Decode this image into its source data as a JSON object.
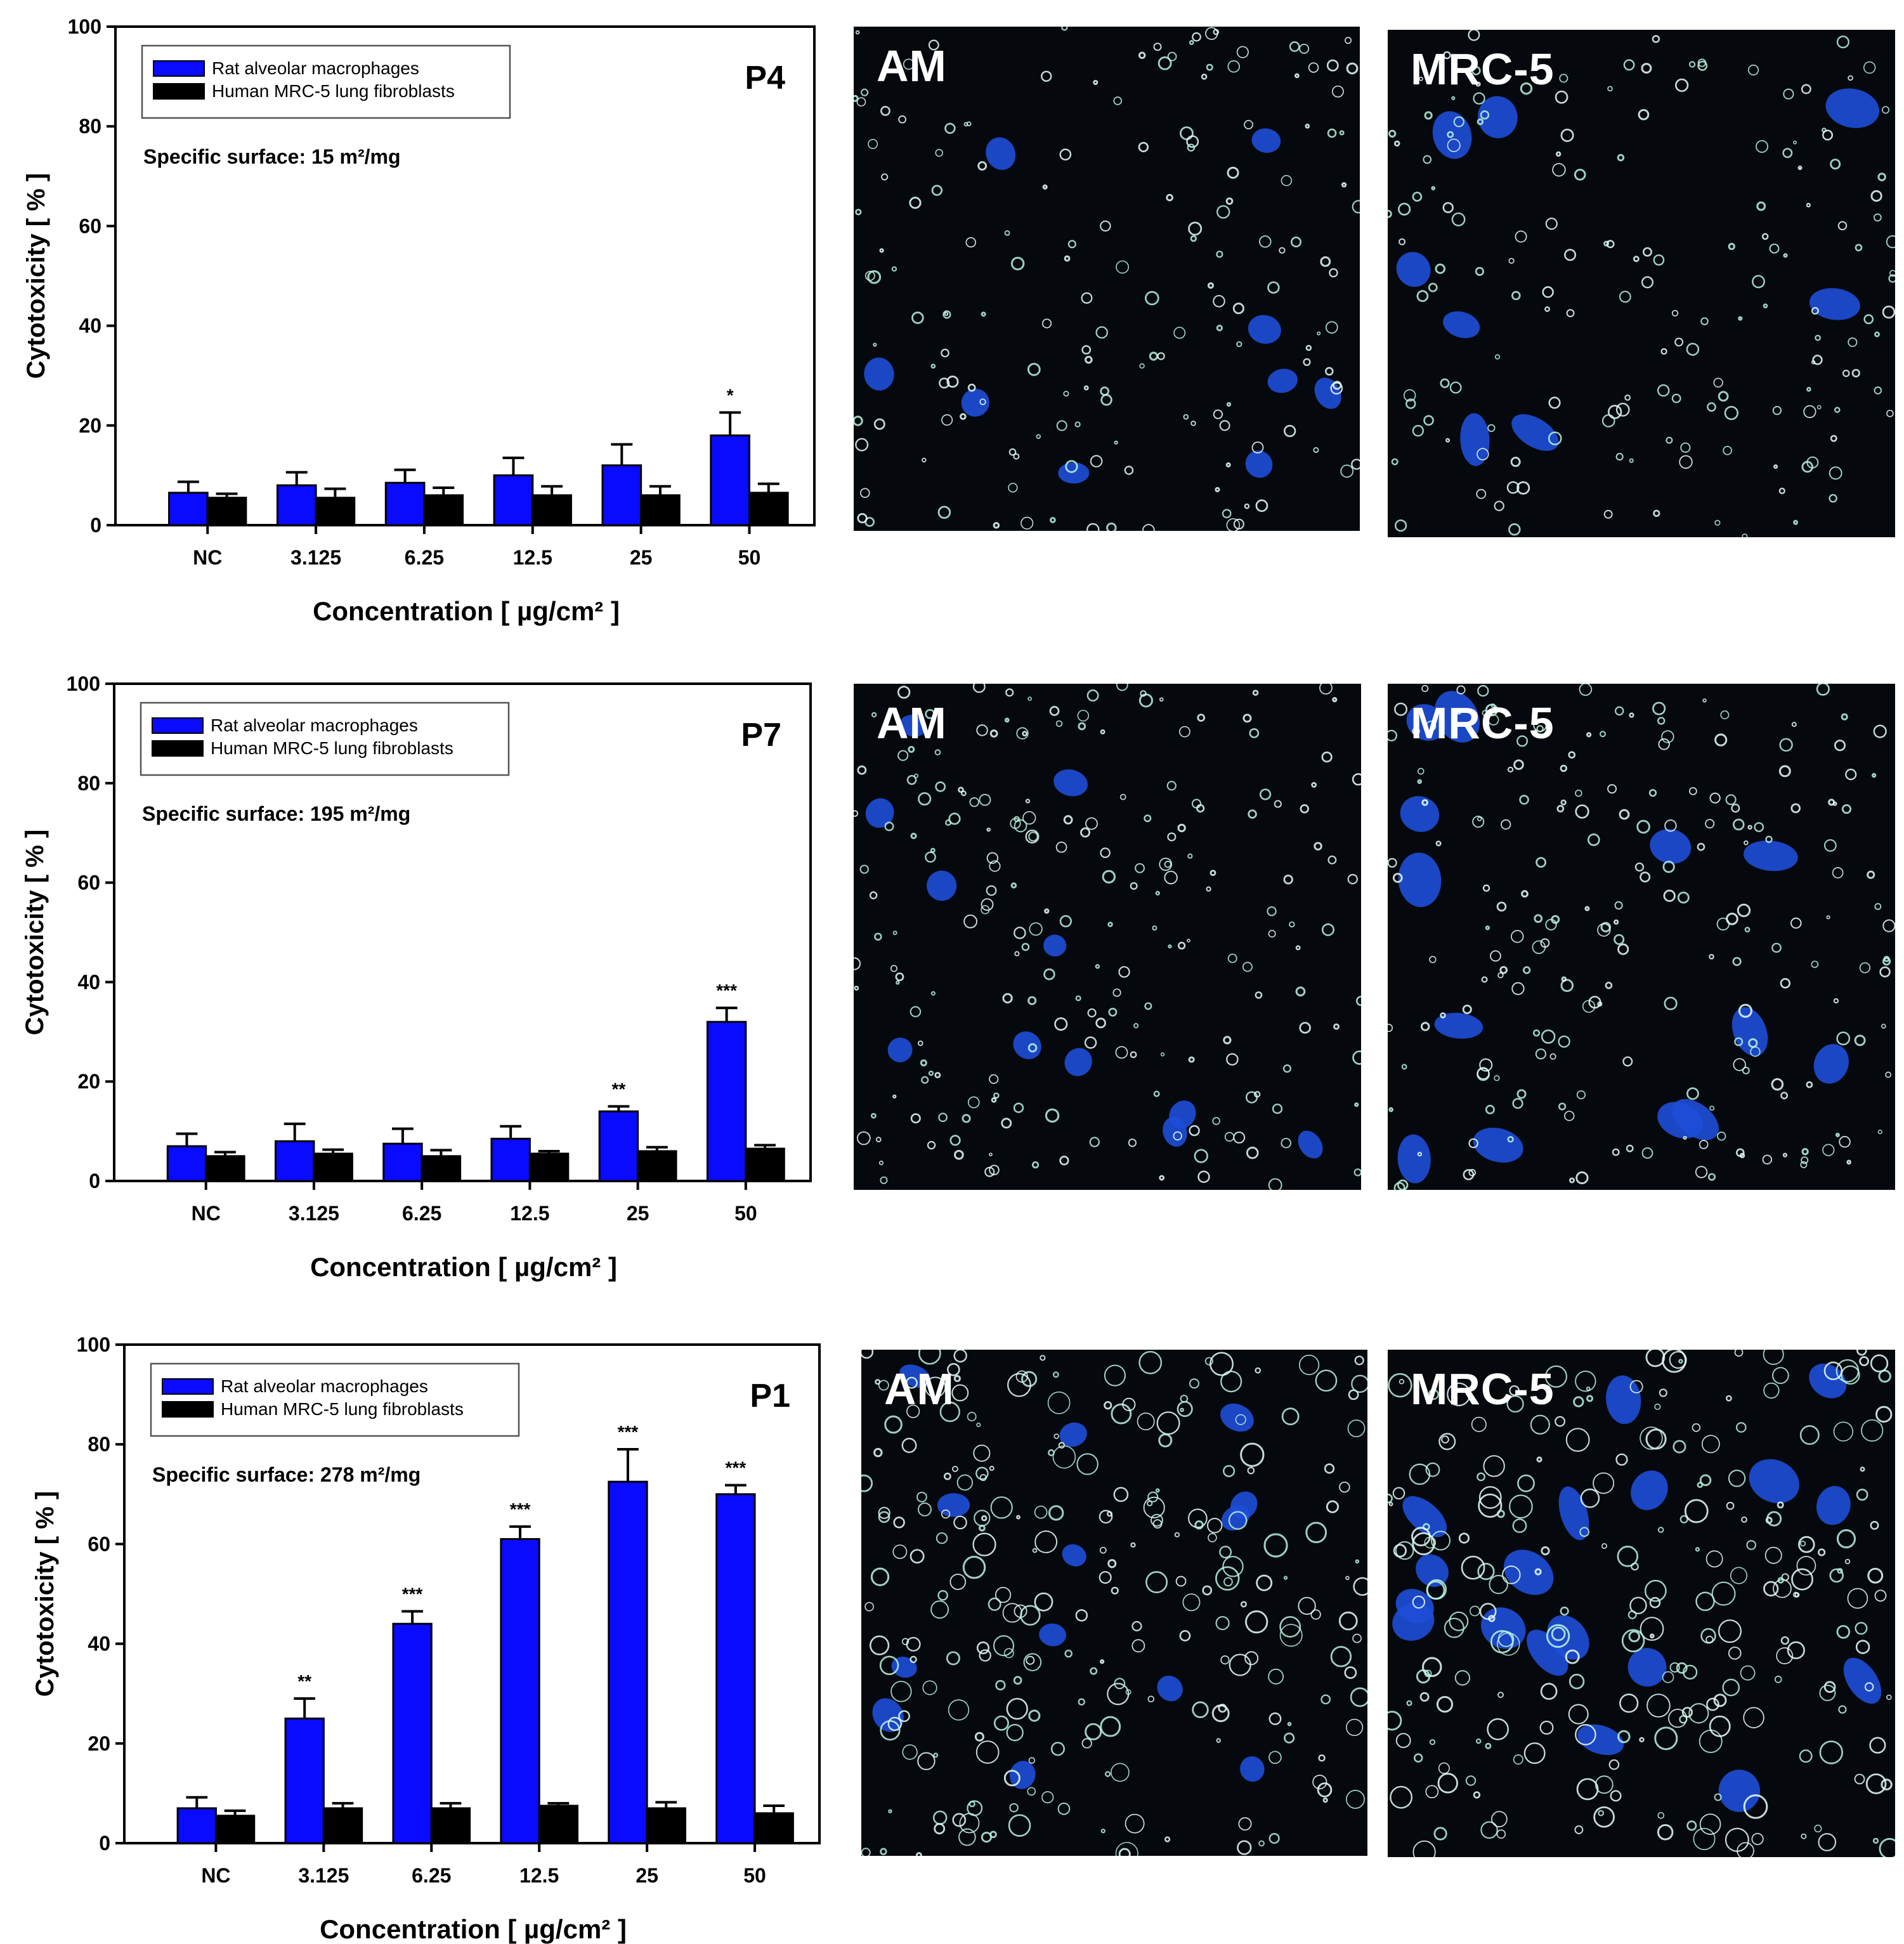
{
  "colors": {
    "blue": "#0a0aff",
    "black": "#000000"
  },
  "legend": [
    "Rat alveolar macrophages",
    "Human MRC-5 lung fibroblasts"
  ],
  "chart_data": [
    {
      "type": "bar",
      "panel_label": "P4",
      "annotation": "Specific surface: 15 m²/mg",
      "xlabel": "Concentration [ µg/cm² ]",
      "ylabel": "Cytotoxicity [ % ]",
      "ylim": [
        0,
        100
      ],
      "yticks": [
        0,
        20,
        40,
        60,
        80,
        100
      ],
      "categories": [
        "NC",
        "3.125",
        "6.25",
        "12.5",
        "25",
        "50"
      ],
      "series": [
        {
          "name": "Rat alveolar macrophages",
          "color": "#0a0aff",
          "values": [
            6.5,
            8,
            8.5,
            10,
            12,
            18
          ],
          "errors": [
            2.2,
            2.6,
            2.6,
            3.5,
            4.2,
            4.6
          ],
          "significance": [
            "",
            "",
            "",
            "",
            "",
            "*"
          ]
        },
        {
          "name": "Human MRC-5 lung fibroblasts",
          "color": "#000000",
          "values": [
            5.5,
            5.5,
            6,
            6,
            6,
            6.5
          ],
          "errors": [
            0.8,
            1.8,
            1.5,
            1.8,
            1.8,
            1.8
          ],
          "significance": [
            "",
            "",
            "",
            "",
            "",
            ""
          ]
        }
      ],
      "images": [
        "AM",
        "MRC-5"
      ]
    },
    {
      "type": "bar",
      "panel_label": "P7",
      "annotation": "Specific surface: 195 m²/mg",
      "xlabel": "Concentration [ µg/cm² ]",
      "ylabel": "Cytotoxicity [ % ]",
      "ylim": [
        0,
        100
      ],
      "yticks": [
        0,
        20,
        40,
        60,
        80,
        100
      ],
      "categories": [
        "NC",
        "3.125",
        "6.25",
        "12.5",
        "25",
        "50"
      ],
      "series": [
        {
          "name": "Rat alveolar macrophages",
          "color": "#0a0aff",
          "values": [
            7,
            8,
            7.5,
            8.5,
            14,
            32
          ],
          "errors": [
            2.5,
            3.5,
            3,
            2.5,
            1,
            2.8
          ],
          "significance": [
            "",
            "",
            "",
            "",
            "**",
            "***"
          ]
        },
        {
          "name": "Human MRC-5 lung fibroblasts",
          "color": "#000000",
          "values": [
            5,
            5.5,
            5,
            5.5,
            6,
            6.5
          ],
          "errors": [
            0.8,
            0.8,
            1.2,
            0.5,
            0.8,
            0.7
          ],
          "significance": [
            "",
            "",
            "",
            "",
            "",
            ""
          ]
        }
      ],
      "images": [
        "AM",
        "MRC-5"
      ]
    },
    {
      "type": "bar",
      "panel_label": "P1",
      "annotation": "Specific surface: 278 m²/mg",
      "xlabel": "Concentration [ µg/cm² ]",
      "ylabel": "Cytotoxicity [ % ]",
      "ylim": [
        0,
        100
      ],
      "yticks": [
        0,
        20,
        40,
        60,
        80,
        100
      ],
      "categories": [
        "NC",
        "3.125",
        "6.25",
        "12.5",
        "25",
        "50"
      ],
      "series": [
        {
          "name": "Rat alveolar macrophages",
          "color": "#0a0aff",
          "values": [
            7,
            25,
            44,
            61,
            72.5,
            70
          ],
          "errors": [
            2.2,
            4,
            2.5,
            2.5,
            6.5,
            1.8
          ],
          "significance": [
            "",
            "**",
            "***",
            "***",
            "***",
            "***"
          ]
        },
        {
          "name": "Human MRC-5 lung fibroblasts",
          "color": "#000000",
          "values": [
            5.5,
            7,
            7,
            7.5,
            7,
            6
          ],
          "errors": [
            1,
            1,
            1,
            0.5,
            1.2,
            1.5
          ],
          "significance": [
            "",
            "",
            "",
            "",
            "",
            ""
          ]
        }
      ],
      "images": [
        "AM",
        "MRC-5"
      ]
    }
  ]
}
